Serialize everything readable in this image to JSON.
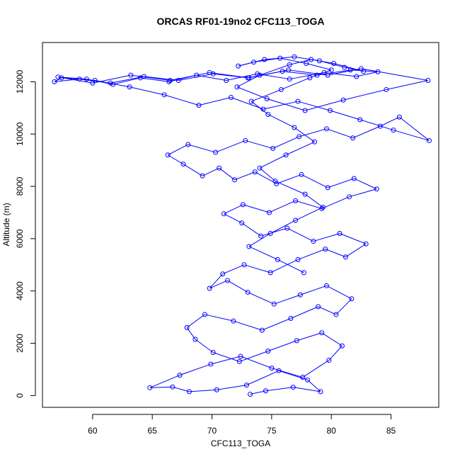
{
  "chart_data": {
    "type": "line",
    "title": "ORCAS RF01-19no2 CFC113_TOGA",
    "xlabel": "CFC113_TOGA",
    "ylabel": "Altitude (m)",
    "xlim": [
      55.8,
      89.0
    ],
    "ylim": [
      -450,
      13500
    ],
    "x_ticks": [
      60,
      65,
      70,
      75,
      80,
      85
    ],
    "y_ticks": [
      0,
      2000,
      4000,
      6000,
      8000,
      10000,
      12000
    ],
    "x_tick_labels": [
      "60",
      "65",
      "70",
      "75",
      "80",
      "85"
    ],
    "y_tick_labels": [
      "0",
      "2000",
      "4000",
      "6000",
      "8000",
      "10000",
      "12000"
    ],
    "series": [
      {
        "color": "#0000ff",
        "marker": "open-circle",
        "x": [
          73.2,
          74.5,
          76.8,
          79.1,
          78.0,
          75.6,
          72.9,
          70.4,
          68.1,
          66.7,
          64.8,
          67.3,
          69.9,
          72.4,
          75.0,
          77.6,
          79.8,
          80.9,
          79.2,
          77.1,
          74.7,
          72.3,
          70.1,
          68.6,
          67.9,
          69.4,
          71.8,
          74.2,
          76.6,
          78.9,
          80.4,
          81.7,
          79.6,
          77.4,
          75.2,
          73.0,
          71.3,
          69.8,
          70.9,
          72.7,
          74.9,
          77.2,
          79.5,
          81.2,
          82.9,
          80.7,
          78.5,
          76.3,
          74.1,
          72.5,
          71.0,
          72.6,
          74.8,
          77.0,
          79.2,
          81.5,
          83.8,
          81.9,
          79.7,
          77.5,
          75.4,
          73.6,
          71.9,
          70.6,
          69.2,
          67.6,
          66.3,
          68.0,
          70.3,
          72.8,
          75.1,
          77.3,
          79.6,
          81.8,
          84.1,
          85.7,
          88.2,
          85.2,
          82.4,
          79.9,
          77.2,
          74.3,
          71.6,
          68.9,
          66.0,
          63.1,
          60.2,
          57.4,
          56.8,
          58.9,
          61.5,
          64.3,
          67.2,
          70.1,
          73.0,
          75.9,
          78.8,
          81.6,
          83.9,
          82.1,
          79.4,
          76.5,
          73.8,
          71.2,
          68.7,
          66.4,
          64.0,
          61.7,
          59.5,
          57.1,
          60.0,
          63.2,
          66.5,
          69.8,
          73.1,
          76.4,
          79.7,
          82.5,
          88.1,
          84.6,
          81.0,
          77.8,
          74.6,
          72.1,
          74.0,
          76.5,
          78.3,
          80.2,
          82.7,
          81.1,
          79.0,
          76.9,
          74.4,
          72.2,
          73.5,
          75.7,
          77.9,
          80.0,
          78.2,
          75.8,
          73.3,
          74.7,
          76.9,
          78.6,
          76.2,
          74.0,
          75.3,
          77.8,
          79.3,
          77.0,
          74.9,
          73.1,
          75.5,
          77.7
        ],
        "y": [
          50,
          180,
          320,
          150,
          600,
          950,
          400,
          220,
          150,
          330,
          300,
          780,
          1200,
          1500,
          1050,
          700,
          1350,
          1900,
          2400,
          2100,
          1700,
          1300,
          1650,
          2150,
          2600,
          3100,
          2850,
          2500,
          2950,
          3400,
          3100,
          3700,
          4200,
          3850,
          3500,
          3950,
          4400,
          4100,
          4650,
          5000,
          4700,
          5200,
          5600,
          5300,
          5800,
          6200,
          5900,
          6400,
          6100,
          6600,
          6950,
          7300,
          7000,
          7450,
          7150,
          7600,
          7900,
          8300,
          7950,
          8450,
          8100,
          8550,
          8250,
          8700,
          8400,
          8850,
          9200,
          9600,
          9300,
          9750,
          9450,
          9900,
          10200,
          9850,
          10300,
          10650,
          9750,
          10150,
          10550,
          10900,
          11250,
          10950,
          11400,
          11100,
          11500,
          11800,
          12050,
          12150,
          12000,
          12100,
          11950,
          12200,
          12050,
          12300,
          12150,
          12400,
          12250,
          12450,
          12380,
          12200,
          12350,
          12100,
          12300,
          12050,
          12250,
          12000,
          12150,
          11900,
          12100,
          12180,
          11950,
          12250,
          12050,
          12350,
          12150,
          12450,
          12250,
          12500,
          12050,
          11700,
          11300,
          10900,
          11350,
          11800,
          12250,
          12650,
          12850,
          12700,
          12400,
          12550,
          12800,
          12950,
          12850,
          12600,
          12750,
          12900,
          12700,
          12450,
          12150,
          11700,
          11250,
          10750,
          10250,
          9700,
          9200,
          8700,
          8200,
          7700,
          7200,
          6700,
          6200,
          5700,
          5200,
          4700
        ]
      }
    ]
  }
}
